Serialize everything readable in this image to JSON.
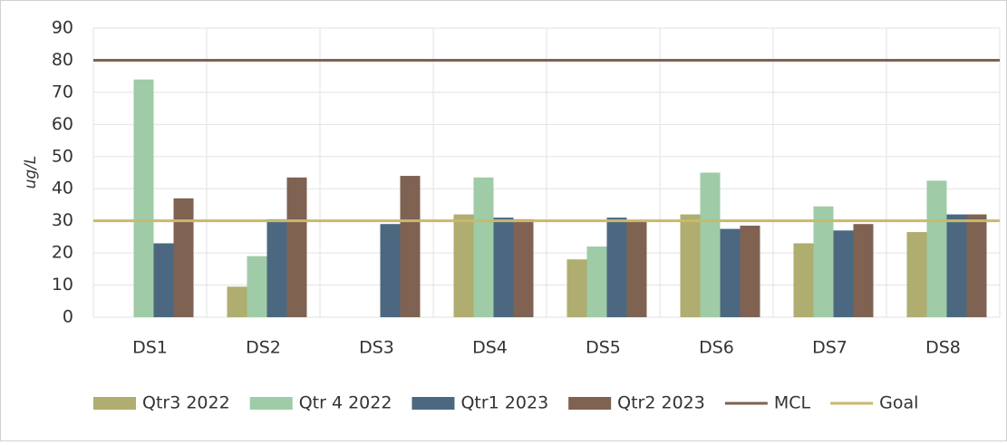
{
  "chart_data": {
    "type": "bar",
    "y_label": "ug/L",
    "categories": [
      "DS1",
      "DS2",
      "DS3",
      "DS4",
      "DS5",
      "DS6",
      "DS7",
      "DS8"
    ],
    "series": [
      {
        "name": "Qtr3 2022",
        "color": "#afad6f",
        "values": [
          null,
          9.5,
          null,
          32,
          18,
          32,
          23,
          26.5
        ]
      },
      {
        "name": "Qtr 4 2022",
        "color": "#9fcba6",
        "values": [
          74,
          19,
          null,
          43.5,
          22,
          45,
          34.5,
          42.5
        ]
      },
      {
        "name": "Qtr1 2023",
        "color": "#4b6880",
        "values": [
          23,
          30.5,
          29,
          31,
          31,
          27.5,
          27,
          32
        ]
      },
      {
        "name": "Qtr2 2023",
        "color": "#7f6252",
        "values": [
          37,
          43.5,
          44,
          30.5,
          30,
          28.5,
          29,
          32
        ]
      }
    ],
    "reference_lines": [
      {
        "name": "MCL",
        "color": "#7f6252",
        "value": 80
      },
      {
        "name": "Goal",
        "color": "#c9b96d",
        "value": 30
      }
    ],
    "ylim": [
      0,
      90
    ],
    "yticks": [
      0,
      10,
      20,
      30,
      40,
      50,
      60,
      70,
      80,
      90
    ],
    "grid": true,
    "legend": "bottom"
  }
}
